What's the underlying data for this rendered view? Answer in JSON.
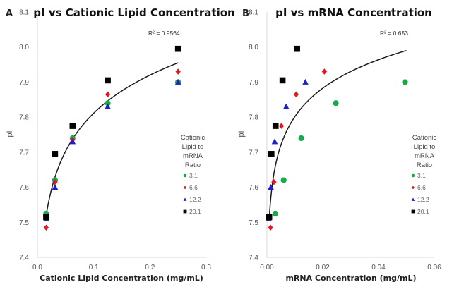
{
  "chart_data": [
    {
      "type": "scatter",
      "panel_letter": "A",
      "title": "pI vs Cationic Lipid Concentration",
      "xlabel": "Cationic Lipid Concentration (mg/mL)",
      "ylabel": "pI",
      "xlim": [
        0,
        0.3
      ],
      "ylim": [
        7.4,
        8.1
      ],
      "xticks": [
        "0.0",
        "0.1",
        "0.2",
        "0.3"
      ],
      "xtick_values": [
        0,
        0.1,
        0.2,
        0.3
      ],
      "yticks": [
        "7.4",
        "7.5",
        "7.6",
        "7.7",
        "7.8",
        "7.9",
        "8.0",
        "8.1"
      ],
      "ytick_values": [
        7.4,
        7.5,
        7.6,
        7.7,
        7.8,
        7.9,
        8.0,
        8.1
      ],
      "grid": false,
      "annotation": "R² = 0.9564",
      "trendline": {
        "type": "logarithmic",
        "x_range": [
          0.0156,
          0.25
        ],
        "y_at_start": 7.52,
        "y_at_end": 7.955
      },
      "legend": {
        "title": "Cationic Lipid to mRNA Ratio",
        "position": "right"
      },
      "series": [
        {
          "name": "3.1",
          "marker": "circle",
          "color": "#1aa84c",
          "x": [
            0.0156,
            0.03125,
            0.0625,
            0.125,
            0.25
          ],
          "y": [
            7.525,
            7.62,
            7.74,
            7.84,
            7.9
          ]
        },
        {
          "name": "6.6",
          "marker": "diamond",
          "color": "#e0191e",
          "x": [
            0.0156,
            0.03125,
            0.0625,
            0.125,
            0.25
          ],
          "y": [
            7.485,
            7.615,
            7.735,
            7.865,
            7.93
          ]
        },
        {
          "name": "12.2",
          "marker": "triangle",
          "color": "#1f1fc8",
          "x": [
            0.0156,
            0.03125,
            0.0625,
            0.125,
            0.25
          ],
          "y": [
            7.51,
            7.6,
            7.73,
            7.83,
            7.9
          ]
        },
        {
          "name": "20.1",
          "marker": "square",
          "color": "#000000",
          "x": [
            0.0156,
            0.03125,
            0.0625,
            0.125,
            0.25
          ],
          "y": [
            7.515,
            7.695,
            7.775,
            7.905,
            7.995
          ]
        }
      ]
    },
    {
      "type": "scatter",
      "panel_letter": "B",
      "title": "pI vs mRNA Concentration",
      "xlabel": "mRNA Concentration (mg/mL)",
      "ylabel": "pI",
      "xlim": [
        0,
        0.06
      ],
      "ylim": [
        7.4,
        8.1
      ],
      "xticks": [
        "0.00",
        "0.02",
        "0.04",
        "0.06"
      ],
      "xtick_values": [
        0,
        0.02,
        0.04,
        0.06
      ],
      "yticks": [
        "7.4",
        "7.5",
        "7.6",
        "7.7",
        "7.8",
        "7.9",
        "8.0",
        "8.1"
      ],
      "ytick_values": [
        7.4,
        7.5,
        7.6,
        7.7,
        7.8,
        7.9,
        8.0,
        8.1
      ],
      "grid": false,
      "annotation": "R² = 0.653",
      "trendline": {
        "type": "logarithmic",
        "x_range": [
          0.0008,
          0.05
        ],
        "y_at_start": 7.505,
        "y_at_end": 7.99
      },
      "legend": {
        "title": "Cationic Lipid to mRNA Ratio",
        "position": "right"
      },
      "series": [
        {
          "name": "3.1",
          "marker": "circle",
          "color": "#1aa84c",
          "x": [
            0.003,
            0.006,
            0.0123,
            0.0247,
            0.0495
          ],
          "y": [
            7.525,
            7.62,
            7.74,
            7.84,
            7.9
          ]
        },
        {
          "name": "6.6",
          "marker": "diamond",
          "color": "#e0191e",
          "x": [
            0.0013,
            0.0025,
            0.0052,
            0.0105,
            0.0206
          ],
          "y": [
            7.485,
            7.615,
            7.775,
            7.865,
            7.93
          ]
        },
        {
          "name": "12.2",
          "marker": "triangle",
          "color": "#1f1fc8",
          "x": [
            0.0007,
            0.0014,
            0.0028,
            0.0069,
            0.0138
          ],
          "y": [
            7.51,
            7.6,
            7.73,
            7.83,
            7.9
          ]
        },
        {
          "name": "20.1",
          "marker": "square",
          "color": "#000000",
          "x": [
            0.0008,
            0.0016,
            0.0031,
            0.0056,
            0.0108
          ],
          "y": [
            7.515,
            7.695,
            7.775,
            7.905,
            7.995
          ]
        }
      ]
    }
  ]
}
